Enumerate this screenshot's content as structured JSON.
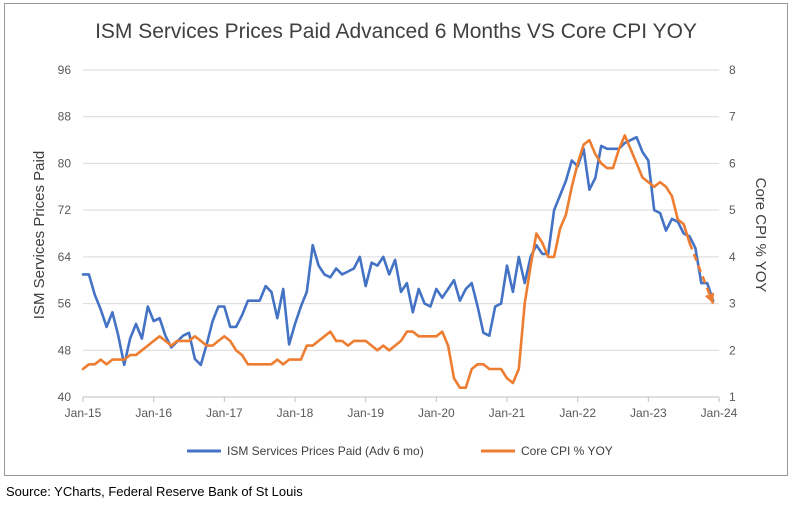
{
  "chart_data": {
    "type": "line",
    "title": "ISM Services Prices Paid Advanced 6 Months VS Core CPI YOY",
    "ylabel_left": "ISM Services Prices Paid",
    "ylabel_right": "Core CPI % YOY",
    "ylim_left": [
      40,
      96
    ],
    "ylim_right": [
      1,
      8
    ],
    "yticks_left": [
      "40",
      "48",
      "56",
      "64",
      "72",
      "80",
      "88",
      "96"
    ],
    "yticks_right": [
      "1",
      "2",
      "3",
      "4",
      "5",
      "6",
      "7",
      "8"
    ],
    "xlim": [
      "2015-01",
      "2024-01"
    ],
    "xtick_labels": [
      "Jan-15",
      "Jan-16",
      "Jan-17",
      "Jan-18",
      "Jan-19",
      "Jan-20",
      "Jan-21",
      "Jan-22",
      "Jan-23",
      "Jan-24"
    ],
    "grid": "horizontal",
    "legend_position": "bottom",
    "series": [
      {
        "name": "ISM Services Prices Paid (Adv 6 mo)",
        "axis": "left",
        "color": "#4472C4",
        "points": [
          [
            "2015-01",
            61
          ],
          [
            "2015-02",
            61
          ],
          [
            "2015-03",
            57.5
          ],
          [
            "2015-04",
            55
          ],
          [
            "2015-05",
            52
          ],
          [
            "2015-06",
            54.5
          ],
          [
            "2015-07",
            50.5
          ],
          [
            "2015-08",
            45.5
          ],
          [
            "2015-09",
            50
          ],
          [
            "2015-10",
            52.5
          ],
          [
            "2015-11",
            50
          ],
          [
            "2015-12",
            55.5
          ],
          [
            "2016-01",
            53
          ],
          [
            "2016-02",
            53.5
          ],
          [
            "2016-03",
            50.5
          ],
          [
            "2016-04",
            48.5
          ],
          [
            "2016-05",
            49.5
          ],
          [
            "2016-06",
            50.5
          ],
          [
            "2016-07",
            51
          ],
          [
            "2016-08",
            46.5
          ],
          [
            "2016-09",
            45.5
          ],
          [
            "2016-10",
            49
          ],
          [
            "2016-11",
            53
          ],
          [
            "2016-12",
            55.5
          ],
          [
            "2017-01",
            55.5
          ],
          [
            "2017-02",
            52
          ],
          [
            "2017-03",
            52
          ],
          [
            "2017-04",
            54
          ],
          [
            "2017-05",
            56.5
          ],
          [
            "2017-06",
            56.5
          ],
          [
            "2017-07",
            56.5
          ],
          [
            "2017-08",
            59
          ],
          [
            "2017-09",
            58
          ],
          [
            "2017-10",
            53.5
          ],
          [
            "2017-11",
            58.5
          ],
          [
            "2017-12",
            49
          ],
          [
            "2018-01",
            52.5
          ],
          [
            "2018-02",
            55.5
          ],
          [
            "2018-03",
            58
          ],
          [
            "2018-04",
            66
          ],
          [
            "2018-05",
            62.5
          ],
          [
            "2018-06",
            61
          ],
          [
            "2018-07",
            60.5
          ],
          [
            "2018-08",
            62
          ],
          [
            "2018-09",
            61
          ],
          [
            "2018-10",
            61.5
          ],
          [
            "2018-11",
            62
          ],
          [
            "2018-12",
            64
          ],
          [
            "2019-01",
            59
          ],
          [
            "2019-02",
            63
          ],
          [
            "2019-03",
            62.5
          ],
          [
            "2019-04",
            64
          ],
          [
            "2019-05",
            61
          ],
          [
            "2019-06",
            63.5
          ],
          [
            "2019-07",
            58
          ],
          [
            "2019-08",
            59.5
          ],
          [
            "2019-09",
            54.5
          ],
          [
            "2019-10",
            58.5
          ],
          [
            "2019-11",
            56
          ],
          [
            "2019-12",
            55.5
          ],
          [
            "2020-01",
            58.5
          ],
          [
            "2020-02",
            57
          ],
          [
            "2020-03",
            58.5
          ],
          [
            "2020-04",
            60
          ],
          [
            "2020-05",
            56.5
          ],
          [
            "2020-06",
            58.5
          ],
          [
            "2020-07",
            59.5
          ],
          [
            "2020-08",
            55.5
          ],
          [
            "2020-09",
            51
          ],
          [
            "2020-10",
            50.5
          ],
          [
            "2020-11",
            55.5
          ],
          [
            "2020-12",
            56
          ],
          [
            "2021-01",
            62.5
          ],
          [
            "2021-02",
            58
          ],
          [
            "2021-03",
            64
          ],
          [
            "2021-04",
            59.5
          ],
          [
            "2021-05",
            64
          ],
          [
            "2021-06",
            66
          ],
          [
            "2021-07",
            64.5
          ],
          [
            "2021-08",
            64.5
          ],
          [
            "2021-09",
            72
          ],
          [
            "2021-10",
            74.5
          ],
          [
            "2021-11",
            77
          ],
          [
            "2021-12",
            80.5
          ],
          [
            "2022-01",
            79.5
          ],
          [
            "2022-02",
            82.5
          ],
          [
            "2022-03",
            75.5
          ],
          [
            "2022-04",
            77.5
          ],
          [
            "2022-05",
            83
          ],
          [
            "2022-06",
            82.5
          ],
          [
            "2022-07",
            82.5
          ],
          [
            "2022-08",
            82.5
          ],
          [
            "2022-09",
            83.5
          ],
          [
            "2022-10",
            84
          ],
          [
            "2022-11",
            84.5
          ],
          [
            "2022-12",
            82
          ],
          [
            "2023-01",
            80.5
          ],
          [
            "2023-02",
            72
          ],
          [
            "2023-03",
            71.5
          ],
          [
            "2023-04",
            68.5
          ],
          [
            "2023-05",
            70.5
          ],
          [
            "2023-06",
            70
          ],
          [
            "2023-07",
            68
          ],
          [
            "2023-08",
            67.5
          ],
          [
            "2023-09",
            65.5
          ],
          [
            "2023-10",
            59.5
          ],
          [
            "2023-11",
            59.5
          ],
          [
            "2023-12",
            56.5
          ]
        ]
      },
      {
        "name": "Core CPI % YOY",
        "axis": "right",
        "color": "#ED7D31",
        "points": [
          [
            "2015-01",
            1.6
          ],
          [
            "2015-02",
            1.7
          ],
          [
            "2015-03",
            1.7
          ],
          [
            "2015-04",
            1.8
          ],
          [
            "2015-05",
            1.7
          ],
          [
            "2015-06",
            1.8
          ],
          [
            "2015-07",
            1.8
          ],
          [
            "2015-08",
            1.8
          ],
          [
            "2015-09",
            1.9
          ],
          [
            "2015-10",
            1.9
          ],
          [
            "2015-11",
            2.0
          ],
          [
            "2015-12",
            2.1
          ],
          [
            "2016-01",
            2.2
          ],
          [
            "2016-02",
            2.3
          ],
          [
            "2016-03",
            2.2
          ],
          [
            "2016-04",
            2.1
          ],
          [
            "2016-05",
            2.2
          ],
          [
            "2016-06",
            2.2
          ],
          [
            "2016-07",
            2.2
          ],
          [
            "2016-08",
            2.3
          ],
          [
            "2016-09",
            2.2
          ],
          [
            "2016-10",
            2.1
          ],
          [
            "2016-11",
            2.1
          ],
          [
            "2016-12",
            2.2
          ],
          [
            "2017-01",
            2.3
          ],
          [
            "2017-02",
            2.2
          ],
          [
            "2017-03",
            2.0
          ],
          [
            "2017-04",
            1.9
          ],
          [
            "2017-05",
            1.7
          ],
          [
            "2017-06",
            1.7
          ],
          [
            "2017-07",
            1.7
          ],
          [
            "2017-08",
            1.7
          ],
          [
            "2017-09",
            1.7
          ],
          [
            "2017-10",
            1.8
          ],
          [
            "2017-11",
            1.7
          ],
          [
            "2017-12",
            1.8
          ],
          [
            "2018-01",
            1.8
          ],
          [
            "2018-02",
            1.8
          ],
          [
            "2018-03",
            2.1
          ],
          [
            "2018-04",
            2.1
          ],
          [
            "2018-05",
            2.2
          ],
          [
            "2018-06",
            2.3
          ],
          [
            "2018-07",
            2.4
          ],
          [
            "2018-08",
            2.2
          ],
          [
            "2018-09",
            2.2
          ],
          [
            "2018-10",
            2.1
          ],
          [
            "2018-11",
            2.2
          ],
          [
            "2018-12",
            2.2
          ],
          [
            "2019-01",
            2.2
          ],
          [
            "2019-02",
            2.1
          ],
          [
            "2019-03",
            2.0
          ],
          [
            "2019-04",
            2.1
          ],
          [
            "2019-05",
            2.0
          ],
          [
            "2019-06",
            2.1
          ],
          [
            "2019-07",
            2.2
          ],
          [
            "2019-08",
            2.4
          ],
          [
            "2019-09",
            2.4
          ],
          [
            "2019-10",
            2.3
          ],
          [
            "2019-11",
            2.3
          ],
          [
            "2019-12",
            2.3
          ],
          [
            "2020-01",
            2.3
          ],
          [
            "2020-02",
            2.4
          ],
          [
            "2020-03",
            2.1
          ],
          [
            "2020-04",
            1.4
          ],
          [
            "2020-05",
            1.2
          ],
          [
            "2020-06",
            1.2
          ],
          [
            "2020-07",
            1.6
          ],
          [
            "2020-08",
            1.7
          ],
          [
            "2020-09",
            1.7
          ],
          [
            "2020-10",
            1.6
          ],
          [
            "2020-11",
            1.6
          ],
          [
            "2020-12",
            1.6
          ],
          [
            "2021-01",
            1.4
          ],
          [
            "2021-02",
            1.3
          ],
          [
            "2021-03",
            1.6
          ],
          [
            "2021-04",
            3.0
          ],
          [
            "2021-05",
            3.8
          ],
          [
            "2021-06",
            4.5
          ],
          [
            "2021-07",
            4.3
          ],
          [
            "2021-08",
            4.0
          ],
          [
            "2021-09",
            4.0
          ],
          [
            "2021-10",
            4.6
          ],
          [
            "2021-11",
            4.9
          ],
          [
            "2021-12",
            5.5
          ],
          [
            "2022-01",
            6.0
          ],
          [
            "2022-02",
            6.4
          ],
          [
            "2022-03",
            6.5
          ],
          [
            "2022-04",
            6.2
          ],
          [
            "2022-05",
            6.0
          ],
          [
            "2022-06",
            5.9
          ],
          [
            "2022-07",
            5.9
          ],
          [
            "2022-08",
            6.3
          ],
          [
            "2022-09",
            6.6
          ],
          [
            "2022-10",
            6.3
          ],
          [
            "2022-11",
            6.0
          ],
          [
            "2022-12",
            5.7
          ],
          [
            "2023-01",
            5.6
          ],
          [
            "2023-02",
            5.5
          ],
          [
            "2023-03",
            5.6
          ],
          [
            "2023-04",
            5.5
          ],
          [
            "2023-05",
            5.3
          ],
          [
            "2023-06",
            4.8
          ],
          [
            "2023-07",
            4.7
          ],
          [
            "2023-08",
            4.3
          ]
        ],
        "dashed_extension": [
          [
            "2023-08",
            4.3
          ],
          [
            "2023-12",
            3.0
          ]
        ]
      }
    ]
  },
  "source_note": "Source: YCharts, Federal Reserve Bank of St Louis"
}
